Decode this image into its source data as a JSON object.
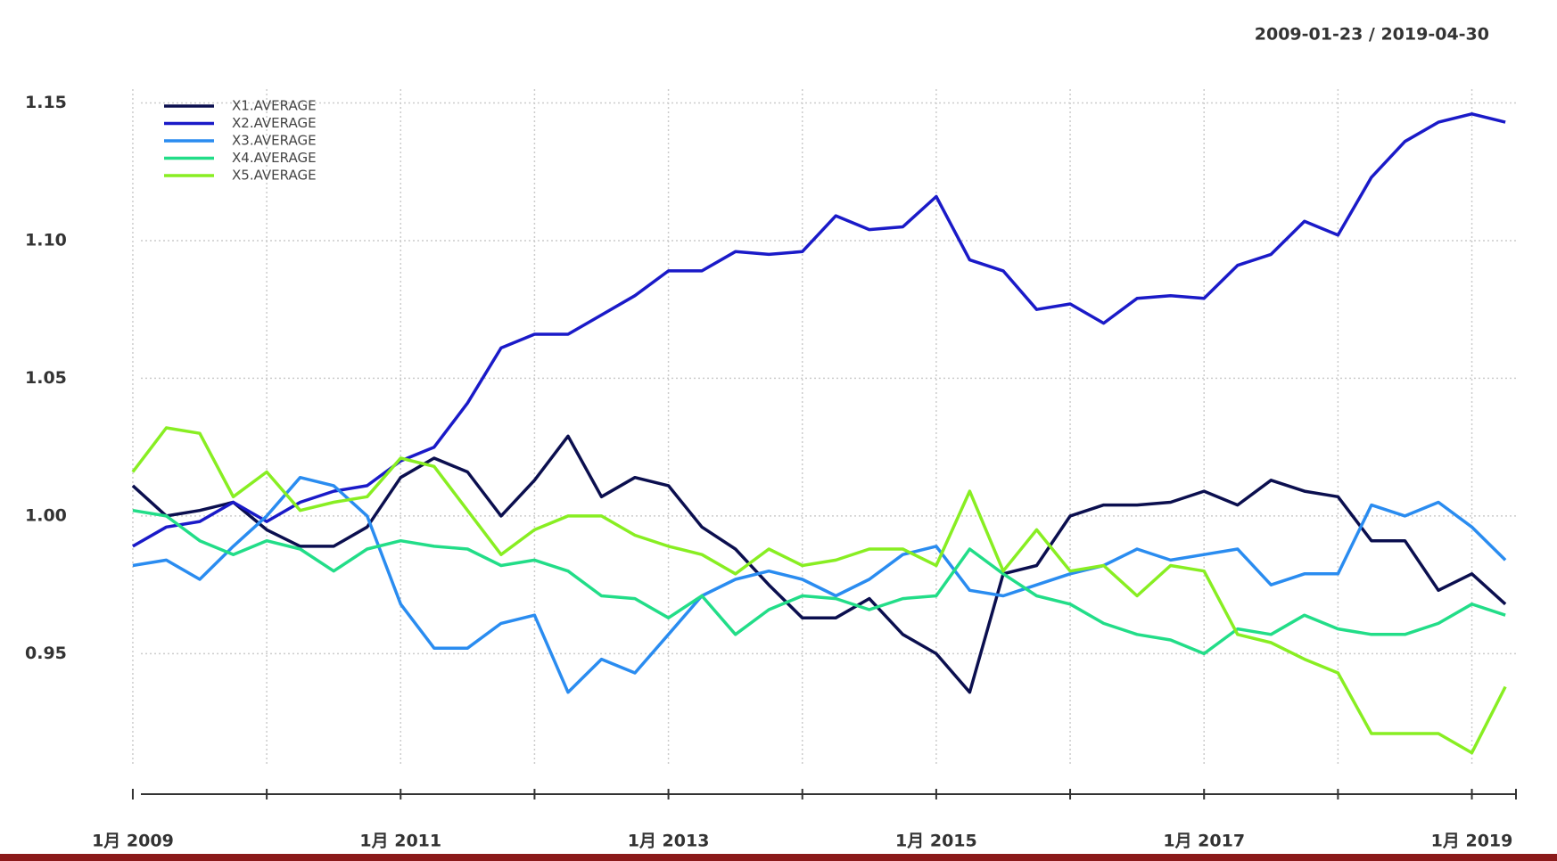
{
  "chart_data": {
    "type": "line",
    "subtitle": "2009-01-23 / 2019-04-30",
    "x": [
      "2009-01",
      "2009-04",
      "2009-07",
      "2009-10",
      "2010-01",
      "2010-04",
      "2010-07",
      "2010-10",
      "2011-01",
      "2011-04",
      "2011-07",
      "2011-10",
      "2012-01",
      "2012-04",
      "2012-07",
      "2012-10",
      "2013-01",
      "2013-04",
      "2013-07",
      "2013-10",
      "2014-01",
      "2014-04",
      "2014-07",
      "2014-10",
      "2015-01",
      "2015-04",
      "2015-07",
      "2015-10",
      "2016-01",
      "2016-04",
      "2016-07",
      "2016-10",
      "2017-01",
      "2017-04",
      "2017-07",
      "2017-10",
      "2018-01",
      "2018-04",
      "2018-07",
      "2018-10",
      "2019-01",
      "2019-04"
    ],
    "series": [
      {
        "name": "X1.AVERAGE",
        "color": "#0b0f4f",
        "values": [
          1.011,
          1.0,
          1.002,
          1.005,
          0.995,
          0.989,
          0.989,
          0.996,
          1.014,
          1.021,
          1.016,
          1.0,
          1.013,
          1.029,
          1.007,
          1.014,
          1.011,
          0.996,
          0.988,
          0.975,
          0.963,
          0.963,
          0.97,
          0.957,
          0.95,
          0.936,
          0.979,
          0.982,
          1.0,
          1.004,
          1.004,
          1.005,
          1.009,
          1.004,
          1.013,
          1.009,
          1.007,
          0.991,
          0.991,
          0.973,
          0.979,
          0.968
        ]
      },
      {
        "name": "X2.AVERAGE",
        "color": "#1a1ac8",
        "values": [
          0.989,
          0.996,
          0.998,
          1.005,
          0.998,
          1.005,
          1.009,
          1.011,
          1.02,
          1.025,
          1.041,
          1.061,
          1.066,
          1.066,
          1.073,
          1.08,
          1.089,
          1.089,
          1.096,
          1.095,
          1.096,
          1.109,
          1.104,
          1.105,
          1.116,
          1.093,
          1.089,
          1.075,
          1.077,
          1.07,
          1.079,
          1.08,
          1.079,
          1.091,
          1.095,
          1.107,
          1.102,
          1.123,
          1.136,
          1.143,
          1.146,
          1.143
        ]
      },
      {
        "name": "X3.AVERAGE",
        "color": "#2a8cf0",
        "values": [
          0.982,
          0.984,
          0.977,
          0.989,
          1.0,
          1.014,
          1.011,
          1.0,
          0.968,
          0.952,
          0.952,
          0.961,
          0.964,
          0.936,
          0.948,
          0.943,
          0.957,
          0.971,
          0.977,
          0.98,
          0.977,
          0.971,
          0.977,
          0.986,
          0.989,
          0.973,
          0.971,
          0.975,
          0.979,
          0.982,
          0.988,
          0.984,
          0.986,
          0.988,
          0.975,
          0.979,
          0.979,
          1.004,
          1.0,
          1.005,
          0.996,
          0.984
        ]
      },
      {
        "name": "X4.AVERAGE",
        "color": "#22dd88",
        "values": [
          1.002,
          1.0,
          0.991,
          0.986,
          0.991,
          0.988,
          0.98,
          0.988,
          0.991,
          0.989,
          0.988,
          0.982,
          0.984,
          0.98,
          0.971,
          0.97,
          0.963,
          0.971,
          0.957,
          0.966,
          0.971,
          0.97,
          0.966,
          0.97,
          0.971,
          0.988,
          0.979,
          0.971,
          0.968,
          0.961,
          0.957,
          0.955,
          0.95,
          0.959,
          0.957,
          0.964,
          0.959,
          0.957,
          0.957,
          0.961,
          0.968,
          0.964
        ]
      },
      {
        "name": "X5.AVERAGE",
        "color": "#88ee22",
        "values": [
          1.016,
          1.032,
          1.03,
          1.007,
          1.016,
          1.002,
          1.005,
          1.007,
          1.021,
          1.018,
          1.002,
          0.986,
          0.995,
          1.0,
          1.0,
          0.993,
          0.989,
          0.986,
          0.979,
          0.988,
          0.982,
          0.984,
          0.988,
          0.988,
          0.982,
          1.009,
          0.98,
          0.995,
          0.98,
          0.982,
          0.971,
          0.982,
          0.98,
          0.957,
          0.954,
          0.948,
          0.943,
          0.921,
          0.921,
          0.921,
          0.914,
          0.938
        ]
      }
    ],
    "xlim": [
      "2009-01-23",
      "2019-04-30"
    ],
    "xticks": [
      {
        "value": "2009-01",
        "label": "1月 2009"
      },
      {
        "value": "2010-01",
        "label": null
      },
      {
        "value": "2011-01",
        "label": "1月 2011"
      },
      {
        "value": "2012-01",
        "label": null
      },
      {
        "value": "2013-01",
        "label": "1月 2013"
      },
      {
        "value": "2014-01",
        "label": null
      },
      {
        "value": "2015-01",
        "label": "1月 2015"
      },
      {
        "value": "2016-01",
        "label": null
      },
      {
        "value": "2017-01",
        "label": "1月 2017"
      },
      {
        "value": "2018-01",
        "label": null
      },
      {
        "value": "2019-01",
        "label": "1月 2019"
      }
    ],
    "ylim": [
      0.91,
      1.155
    ],
    "yticks": [
      0.95,
      {
        "value": 1.0,
        "label": "1.00"
      },
      1.05,
      {
        "value": 1.1,
        "label": "1.10"
      },
      1.15
    ],
    "grid": true,
    "legend": "top-left"
  }
}
